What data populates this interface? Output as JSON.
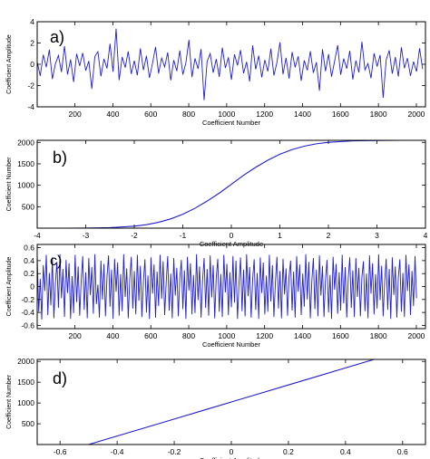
{
  "chart_data": [
    {
      "type": "line",
      "panel_label": "a)",
      "xlabel": "Coefficient Number",
      "ylabel": "Coefficient Amplitude",
      "xlim": [
        1,
        2048
      ],
      "ylim": [
        -4,
        4
      ],
      "xticks": [
        200,
        400,
        600,
        800,
        1000,
        1200,
        1400,
        1600,
        1800,
        2000
      ],
      "yticks": [
        -4,
        -2,
        0,
        2,
        4
      ],
      "series_color": "#1f1fcf",
      "series": [
        {
          "x_start": 1,
          "x_step": 16,
          "values": [
            0.21,
            -1.09,
            0.89,
            -0.27,
            1.37,
            -1.39,
            0.05,
            0.83,
            -0.73,
            1.71,
            -0.95,
            0.45,
            -1.67,
            0.99,
            -0.15,
            1.07,
            -0.59,
            0.31,
            -2.31,
            0.73,
            1.19,
            -1.13,
            0.51,
            -0.39,
            1.93,
            -0.71,
            3.35,
            -1.49,
            0.69,
            -0.31,
            1.21,
            -0.91,
            0.33,
            -1.03,
            1.49,
            -0.55,
            0.79,
            -1.27,
            0.09,
            1.63,
            -0.87,
            0.59,
            -0.25,
            1.11,
            -1.51,
            0.39,
            -0.63,
            1.29,
            -0.97,
            0.13,
            2.29,
            -1.21,
            0.55,
            -0.43,
            1.43,
            -3.37,
            0.27,
            1.01,
            -0.79,
            0.49,
            -1.19,
            1.57,
            -0.35,
            0.65,
            -1.45,
            0.93,
            -0.11,
            1.33,
            -0.85,
            0.23,
            -1.61,
            1.77,
            -0.47,
            0.81,
            -1.23,
            0.41,
            -0.67,
            1.47,
            -1.05,
            0.17,
            2.07,
            -0.93,
            0.61,
            -1.35,
            1.15,
            -0.29,
            0.75,
            -1.55,
            0.37,
            -0.57,
            1.23,
            -0.81,
            0.19,
            -2.49,
            1.41,
            -0.65,
            0.95,
            -1.17,
            0.29,
            1.79,
            -0.99,
            0.53,
            -0.41,
            1.27,
            -1.43,
            0.35,
            -0.77,
            2.11,
            -0.53,
            0.07,
            -1.31,
            1.03,
            -0.21,
            0.87,
            -3.15,
            0.43,
            1.31,
            -0.89,
            0.67,
            -1.15,
            1.59,
            -0.37,
            0.57,
            -1.09,
            0.25,
            -0.69,
            1.51,
            -0.45
          ]
        }
      ]
    },
    {
      "type": "line",
      "panel_label": "b)",
      "xlabel": "Coefficient Amplitude",
      "ylabel": "Coefficient Number",
      "xlim": [
        -4,
        4
      ],
      "ylim": [
        1,
        2048
      ],
      "xticks": [
        -4,
        -3,
        -2,
        -1,
        0,
        1,
        2,
        3,
        4
      ],
      "yticks": [
        500,
        1000,
        1500,
        2000
      ],
      "series_color": "#1f1fcf",
      "series": [
        {
          "x": [
            -3.4,
            -3.0,
            -2.5,
            -2.0,
            -1.75,
            -1.5,
            -1.25,
            -1.0,
            -0.75,
            -0.5,
            -0.25,
            0.0,
            0.25,
            0.5,
            0.75,
            1.0,
            1.25,
            1.5,
            1.75,
            2.0,
            2.5,
            3.0,
            3.5
          ],
          "y": [
            1,
            3,
            12,
            47,
            82,
            137,
            216,
            325,
            464,
            631,
            816,
            1024,
            1232,
            1417,
            1584,
            1723,
            1832,
            1911,
            1966,
            2001,
            2036,
            2045,
            2048
          ]
        }
      ]
    },
    {
      "type": "line",
      "panel_label": "c)",
      "xlabel": "Coefficient Number",
      "ylabel": "Coefficient Amplitude",
      "xlim": [
        1,
        2048
      ],
      "ylim": [
        -0.65,
        0.65
      ],
      "xticks": [
        200,
        400,
        600,
        800,
        1000,
        1200,
        1400,
        1600,
        1800,
        2000
      ],
      "yticks": [
        -0.6,
        -0.4,
        -0.2,
        0,
        0.2,
        0.4,
        0.6
      ],
      "series_color": "#1f1fcf",
      "series": [
        {
          "x_start": 1,
          "x_step": 8,
          "values": [
            0.48,
            -0.39,
            0.12,
            -0.51,
            0.33,
            -0.07,
            0.49,
            -0.44,
            0.21,
            -0.29,
            0.45,
            -0.49,
            0.05,
            0.38,
            -0.33,
            0.5,
            -0.18,
            0.27,
            -0.47,
            0.41,
            -0.1,
            0.36,
            -0.5,
            0.16,
            -0.41,
            0.49,
            -0.24,
            0.31,
            -0.45,
            0.09,
            0.47,
            -0.36,
            0.22,
            -0.49,
            0.44,
            -0.13,
            0.3,
            -0.42,
            0.5,
            -0.27,
            0.03,
            -0.48,
            0.4,
            -0.2,
            0.35,
            -0.46,
            0.15,
            0.48,
            -0.31,
            0.26,
            -0.5,
            0.43,
            -0.08,
            0.37,
            -0.45,
            0.19,
            -0.38,
            0.5,
            -0.16,
            0.28,
            -0.49,
            0.11,
            0.46,
            -0.34,
            0.24,
            -0.43,
            0.49,
            -0.22,
            0.32,
            -0.47,
            0.08,
            0.42,
            -0.4,
            0.17,
            -0.5,
            0.45,
            -0.11,
            0.34,
            -0.48,
            0.23,
            -0.3,
            0.49,
            -0.19,
            0.39,
            -0.44,
            0.06,
            0.47,
            -0.37,
            0.2,
            -0.49,
            0.44,
            -0.14,
            0.29,
            -0.46,
            0.13,
            0.41,
            -0.35,
            0.25,
            -0.5,
            0.46,
            -0.06,
            0.36,
            -0.43,
            0.18,
            -0.41,
            0.5,
            -0.21,
            0.31,
            -0.48,
            0.1,
            0.44,
            -0.33,
            0.27,
            -0.45,
            0.48,
            -0.17,
            0.33,
            -0.49,
            0.14,
            0.43,
            -0.39,
            0.19,
            -0.47,
            0.49,
            -0.09,
            0.35,
            -0.44,
            0.22,
            -0.32,
            0.47,
            -0.25,
            0.4,
            -0.5,
            0.04,
            0.45,
            -0.38,
            0.26,
            -0.46,
            0.5,
            -0.15,
            0.3,
            -0.48,
            0.12,
            0.42,
            -0.36,
            0.21,
            -0.5,
            0.45,
            -0.1,
            0.37,
            -0.43,
            0.17,
            -0.39,
            0.49,
            -0.23,
            0.33,
            -0.47,
            0.07,
            0.46,
            -0.34,
            0.24,
            -0.49,
            0.43,
            -0.12,
            0.28,
            -0.45,
            0.16,
            0.4,
            -0.37,
            0.23,
            -0.48,
            0.47,
            -0.08,
            0.34,
            -0.44,
            0.2,
            -0.31,
            0.5,
            -0.2,
            0.38,
            -0.49,
            0.09,
            0.44,
            -0.35,
            0.26,
            -0.46,
            0.48,
            -0.14,
            0.32,
            -0.47,
            0.11,
            0.41,
            -0.4,
            0.18,
            -0.5,
            0.46,
            -0.05,
            0.35,
            -0.42,
            0.22,
            -0.37,
            0.49,
            -0.26,
            0.3,
            -0.48,
            0.13,
            0.45,
            -0.33,
            0.25,
            -0.47,
            0.44,
            -0.16,
            0.29,
            -0.46,
            0.15,
            0.39,
            -0.38,
            0.2,
            -0.49,
            0.48,
            -0.11,
            0.36,
            -0.43,
            0.19,
            -0.34,
            0.5,
            -0.21,
            0.32,
            -0.46,
            0.08,
            0.43,
            -0.36,
            0.27,
            -0.5,
            0.45,
            -0.13,
            0.31,
            -0.48,
            0.14,
            0.42,
            -0.39,
            0.21,
            -0.47,
            0.49,
            -0.07,
            0.34,
            -0.44,
            0.24,
            -0.3,
            0.47,
            -0.18
          ]
        }
      ]
    },
    {
      "type": "line",
      "panel_label": "d)",
      "xlabel": "Coefficient Amplitude",
      "ylabel": "Coefficient Number",
      "xlim": [
        -0.68,
        0.68
      ],
      "ylim": [
        1,
        2048
      ],
      "xticks": [
        -0.6,
        -0.4,
        -0.2,
        0,
        0.2,
        0.4,
        0.6
      ],
      "yticks": [
        500,
        1000,
        1500,
        2000
      ],
      "series_color": "#1f1fcf",
      "series": [
        {
          "x": [
            -0.5,
            -0.4,
            -0.3,
            -0.2,
            -0.1,
            0.0,
            0.1,
            0.2,
            0.3,
            0.4,
            0.5
          ],
          "y": [
            1,
            205,
            410,
            614,
            819,
            1024,
            1229,
            1434,
            1638,
            1843,
            2048
          ]
        }
      ]
    }
  ]
}
